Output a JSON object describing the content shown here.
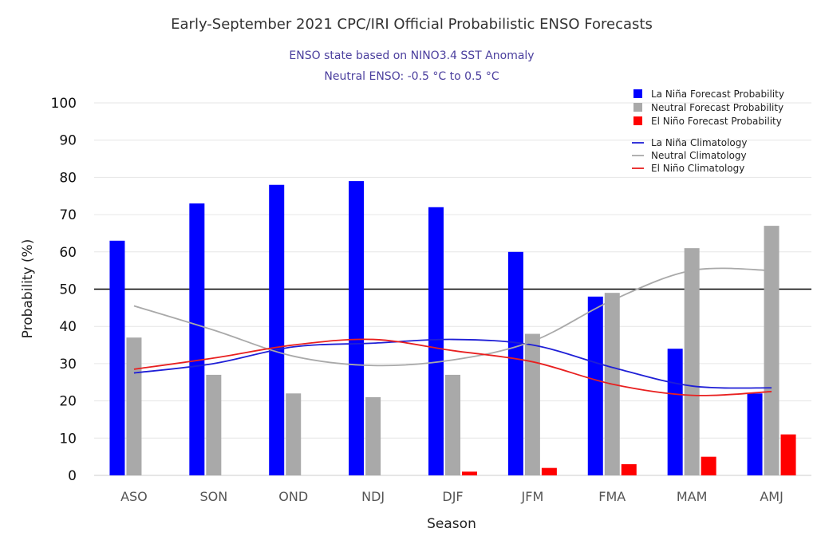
{
  "chart_data": {
    "type": "bar",
    "title": "Early-September 2021 CPC/IRI Official Probabilistic ENSO Forecasts",
    "subtitle_line1": "ENSO state based on NINO3.4 SST Anomaly",
    "subtitle_line2": "Neutral ENSO: -0.5 °C to 0.5 °C",
    "xlabel": "Season",
    "ylabel": "Probability (%)",
    "ylim": [
      0,
      100
    ],
    "yticks": [
      0,
      10,
      20,
      30,
      40,
      50,
      60,
      70,
      80,
      90,
      100
    ],
    "reference_line": 50,
    "grid": true,
    "legend_position": "top-right",
    "categories": [
      "ASO",
      "SON",
      "OND",
      "NDJ",
      "DJF",
      "JFM",
      "FMA",
      "MAM",
      "AMJ"
    ],
    "series": [
      {
        "name": "La Niña Forecast Probability",
        "kind": "bar",
        "color": "#0000ff",
        "values": [
          63,
          73,
          78,
          79,
          72,
          60,
          48,
          34,
          22
        ]
      },
      {
        "name": "Neutral Forecast Probability",
        "kind": "bar",
        "color": "#a9a9a9",
        "values": [
          37,
          27,
          22,
          21,
          27,
          38,
          49,
          61,
          67
        ]
      },
      {
        "name": "El Niño Forecast Probability",
        "kind": "bar",
        "color": "#ff0000",
        "values": [
          0,
          0,
          0,
          0,
          1,
          2,
          3,
          5,
          11
        ]
      },
      {
        "name": "La Niña Climatology",
        "kind": "line",
        "color": "#1f1fd6",
        "values": [
          27.5,
          30,
          34.5,
          35.5,
          36.5,
          35,
          29,
          24,
          23.5
        ]
      },
      {
        "name": "Neutral Climatology",
        "kind": "line",
        "color": "#a9a9a9",
        "values": [
          45.5,
          39,
          32,
          29.5,
          31,
          36,
          47,
          55,
          55
        ]
      },
      {
        "name": "El Niño Climatology",
        "kind": "line",
        "color": "#e82020",
        "values": [
          28.5,
          31.5,
          35,
          36.5,
          33.5,
          30.5,
          24.5,
          21.5,
          22.5
        ]
      }
    ]
  }
}
